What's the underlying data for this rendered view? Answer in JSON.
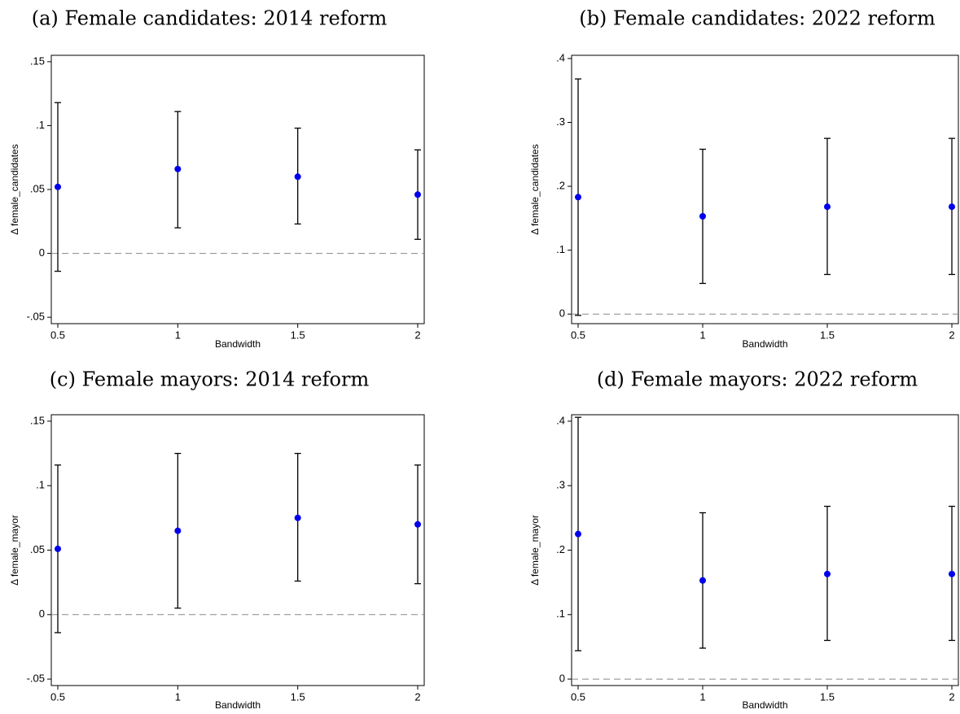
{
  "chart_data": [
    {
      "type": "scatter",
      "title": "(a) Female candidates: 2014 reform",
      "xlabel": "Bandwidth",
      "ylabel": "Δ female_candidates",
      "x": [
        0.5,
        1,
        1.5,
        2
      ],
      "x_tick_labels": [
        "0.5",
        "1",
        "1.5",
        "2"
      ],
      "y_ticks": [
        -0.05,
        0,
        0.05,
        0.1,
        0.15
      ],
      "y_tick_labels": [
        "-.05",
        "0",
        ".05",
        ".1",
        ".15"
      ],
      "ylim": [
        -0.055,
        0.155
      ],
      "xlim": [
        0.5,
        2
      ],
      "series": [
        {
          "values": [
            0.052,
            0.066,
            0.06,
            0.046
          ],
          "ci_low": [
            -0.014,
            0.02,
            0.023,
            0.011
          ],
          "ci_high": [
            0.118,
            0.111,
            0.098,
            0.081
          ]
        }
      ],
      "reference_line": 0,
      "grid": false
    },
    {
      "type": "scatter",
      "title": "(b) Female candidates: 2022 reform",
      "xlabel": "Bandwidth",
      "ylabel": "Δ female_candidates",
      "x": [
        0.5,
        1,
        1.5,
        2
      ],
      "x_tick_labels": [
        "0.5",
        "1",
        "1.5",
        "2"
      ],
      "y_ticks": [
        0,
        0.1,
        0.2,
        0.3,
        0.4
      ],
      "y_tick_labels": [
        "0",
        ".1",
        ".2",
        ".3",
        ".4"
      ],
      "ylim": [
        -0.015,
        0.405
      ],
      "xlim": [
        0.5,
        2
      ],
      "series": [
        {
          "values": [
            0.183,
            0.153,
            0.168,
            0.168
          ],
          "ci_low": [
            -0.002,
            0.048,
            0.062,
            0.062
          ],
          "ci_high": [
            0.368,
            0.258,
            0.275,
            0.275
          ]
        }
      ],
      "reference_line": 0,
      "grid": false
    },
    {
      "type": "scatter",
      "title": "(c) Female mayors: 2014 reform",
      "xlabel": "Bandwidth",
      "ylabel": "Δ female_mayor",
      "x": [
        0.5,
        1,
        1.5,
        2
      ],
      "x_tick_labels": [
        "0.5",
        "1",
        "1.5",
        "2"
      ],
      "y_ticks": [
        -0.05,
        0,
        0.05,
        0.1,
        0.15
      ],
      "y_tick_labels": [
        "-.05",
        "0",
        ".05",
        ".1",
        ".15"
      ],
      "ylim": [
        -0.055,
        0.155
      ],
      "xlim": [
        0.5,
        2
      ],
      "series": [
        {
          "values": [
            0.051,
            0.065,
            0.075,
            0.07
          ],
          "ci_low": [
            -0.014,
            0.005,
            0.026,
            0.024
          ],
          "ci_high": [
            0.116,
            0.125,
            0.125,
            0.116
          ]
        }
      ],
      "reference_line": 0,
      "grid": false
    },
    {
      "type": "scatter",
      "title": "(d) Female mayors: 2022 reform",
      "xlabel": "Bandwidth",
      "ylabel": "Δ female_mayor",
      "x": [
        0.5,
        1,
        1.5,
        2
      ],
      "x_tick_labels": [
        "0.5",
        "1",
        "1.5",
        "2"
      ],
      "y_ticks": [
        0,
        0.1,
        0.2,
        0.3,
        0.4
      ],
      "y_tick_labels": [
        "0",
        ".1",
        ".2",
        ".3",
        ".4"
      ],
      "ylim": [
        -0.01,
        0.41
      ],
      "xlim": [
        0.5,
        2
      ],
      "series": [
        {
          "values": [
            0.225,
            0.153,
            0.163,
            0.163
          ],
          "ci_low": [
            0.044,
            0.048,
            0.06,
            0.06
          ],
          "ci_high": [
            0.406,
            0.258,
            0.268,
            0.268
          ]
        }
      ],
      "reference_line": 0,
      "grid": false
    }
  ],
  "colors": {
    "point": "#0000ee",
    "ci": "#000000",
    "reference_line": "#888888"
  }
}
